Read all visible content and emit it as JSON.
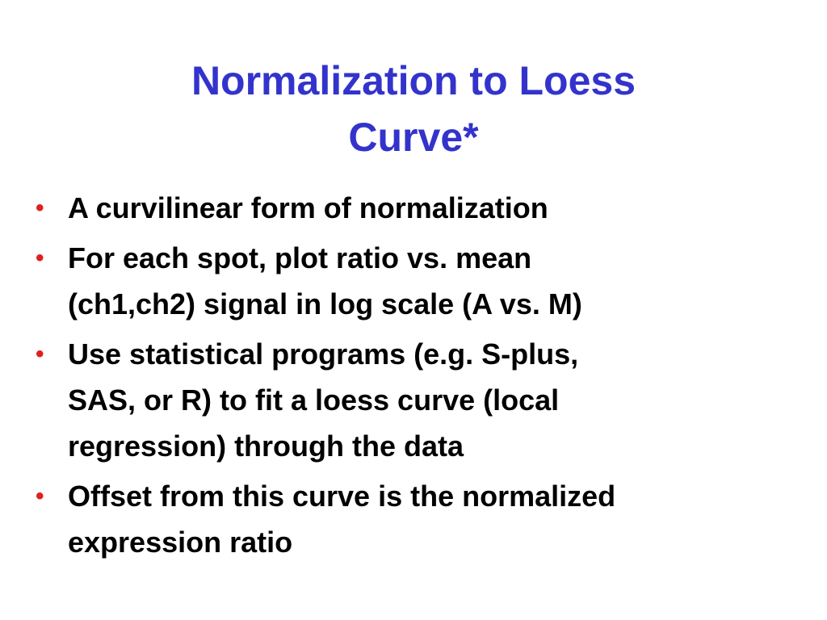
{
  "title": "Normalization to Loess Curve*",
  "bullets": [
    [
      "A curvilinear form of normalization"
    ],
    [
      "For each spot, plot ratio vs. mean",
      "(ch1,ch2) signal in log scale (A vs. M)"
    ],
    [
      "Use statistical programs (e.g. S-plus,",
      "SAS, or R) to fit a loess curve (local",
      "regression) through the data"
    ],
    [
      "Offset from this curve is the normalized",
      "expression ratio"
    ]
  ]
}
